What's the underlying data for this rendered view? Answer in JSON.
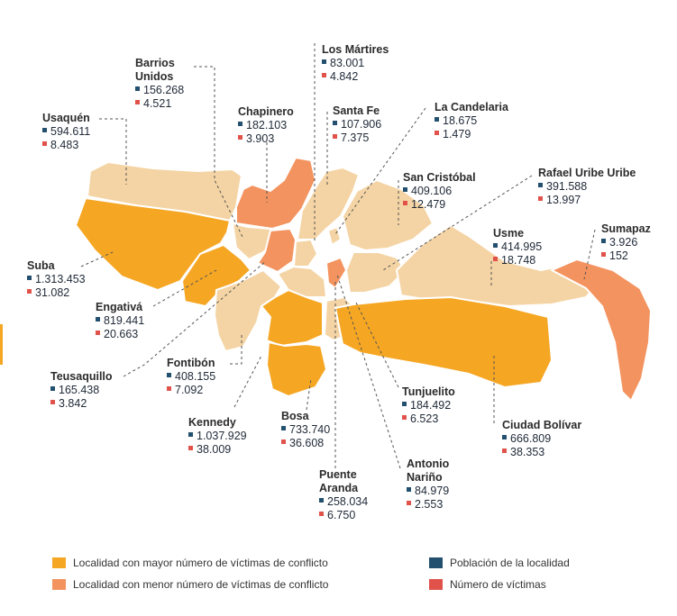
{
  "colors": {
    "light": "#f4d4a4",
    "mayor": "#f5a623",
    "menor": "#f3935f",
    "population": "#23506e",
    "victims": "#e0524a",
    "border": "#ffffff",
    "leader": "#555555"
  },
  "localidades": [
    {
      "key": "usaquen",
      "name_lines": [
        "Usaquén"
      ],
      "poblacion": "594.611",
      "victimas": "8.483",
      "category": "light"
    },
    {
      "key": "barrios-unidos",
      "name_lines": [
        "Barrios",
        "Unidos"
      ],
      "poblacion": "156.268",
      "victimas": "4.521",
      "category": "light"
    },
    {
      "key": "chapinero",
      "name_lines": [
        "Chapinero"
      ],
      "poblacion": "182.103",
      "victimas": "3.903",
      "category": "menor"
    },
    {
      "key": "los-martires",
      "name_lines": [
        "Los Mártires"
      ],
      "poblacion": "83.001",
      "victimas": "4.842",
      "category": "light"
    },
    {
      "key": "santa-fe",
      "name_lines": [
        "Santa Fe"
      ],
      "poblacion": "107.906",
      "victimas": "7.375",
      "category": "light"
    },
    {
      "key": "la-candelaria",
      "name_lines": [
        "La Candelaria"
      ],
      "poblacion": "18.675",
      "victimas": "1.479",
      "category": "light"
    },
    {
      "key": "san-cristobal",
      "name_lines": [
        "San Cristóbal"
      ],
      "poblacion": "409.106",
      "victimas": "12.479",
      "category": "light"
    },
    {
      "key": "rafael-uribe-uribe",
      "name_lines": [
        "Rafael Uribe Uribe"
      ],
      "poblacion": "391.588",
      "victimas": "13.997",
      "category": "light"
    },
    {
      "key": "suba",
      "name_lines": [
        "Suba"
      ],
      "poblacion": "1.313.453",
      "victimas": "31.082",
      "category": "mayor"
    },
    {
      "key": "usme",
      "name_lines": [
        "Usme"
      ],
      "poblacion": "414.995",
      "victimas": "18.748",
      "category": "light"
    },
    {
      "key": "sumapaz",
      "name_lines": [
        "Sumapaz"
      ],
      "poblacion": "3.926",
      "victimas": "152",
      "category": "menor"
    },
    {
      "key": "engativa",
      "name_lines": [
        "Engativá"
      ],
      "poblacion": "819.441",
      "victimas": "20.663",
      "category": "mayor"
    },
    {
      "key": "teusaquillo",
      "name_lines": [
        "Teusaquillo"
      ],
      "poblacion": "165.438",
      "victimas": "3.842",
      "category": "menor"
    },
    {
      "key": "fontibon",
      "name_lines": [
        "Fontibón"
      ],
      "poblacion": "408.155",
      "victimas": "7.092",
      "category": "light"
    },
    {
      "key": "tunjuelito",
      "name_lines": [
        "Tunjuelito"
      ],
      "poblacion": "184.492",
      "victimas": "6.523",
      "category": "light"
    },
    {
      "key": "kennedy",
      "name_lines": [
        "Kennedy"
      ],
      "poblacion": "1.037.929",
      "victimas": "38.009",
      "category": "mayor"
    },
    {
      "key": "bosa",
      "name_lines": [
        "Bosa"
      ],
      "poblacion": "733.740",
      "victimas": "36.608",
      "category": "mayor"
    },
    {
      "key": "ciudad-bolivar",
      "name_lines": [
        "Ciudad Bolívar"
      ],
      "poblacion": "666.809",
      "victimas": "38.353",
      "category": "mayor"
    },
    {
      "key": "antonio-narino",
      "name_lines": [
        "Antonio",
        "Nariño"
      ],
      "poblacion": "84.979",
      "victimas": "2.553",
      "category": "menor"
    },
    {
      "key": "puente-aranda",
      "name_lines": [
        "Puente",
        "Aranda"
      ],
      "poblacion": "258.034",
      "victimas": "6.750",
      "category": "light"
    }
  ],
  "legend": {
    "mayor": "Localidad con mayor número de víctimas de conflicto",
    "menor": "Localidad con menor número de víctimas de conflicto",
    "poblacion": "Población de la localidad",
    "victimas": "Número de víctimas"
  }
}
